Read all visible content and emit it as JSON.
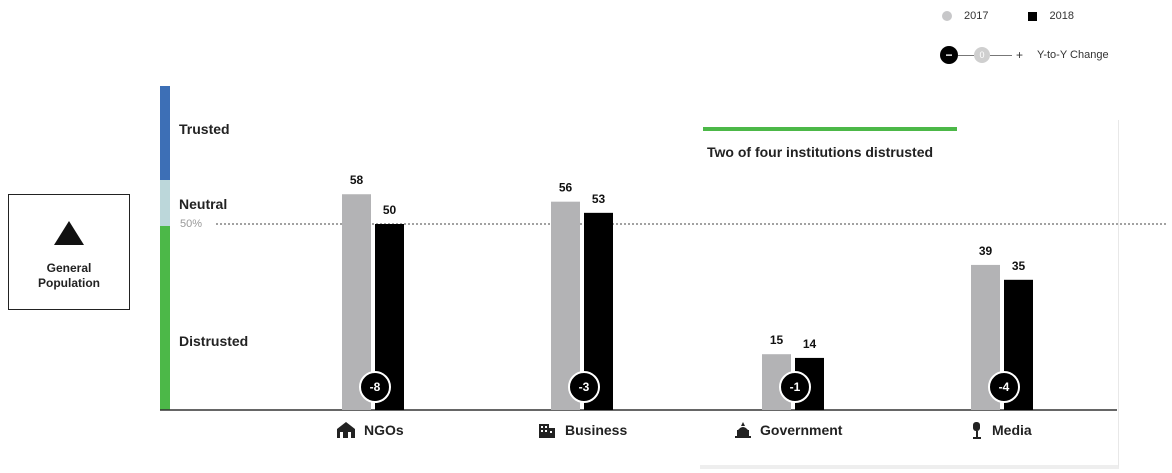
{
  "legend": {
    "y2017": "2017",
    "y2018": "2018",
    "change_minus": "−",
    "change_zero": "0",
    "change_plus": "+",
    "change_label": "Y-to-Y Change"
  },
  "population": {
    "label_line1": "General",
    "label_line2": "Population",
    "icon": "pyramid-icon"
  },
  "bands": {
    "trusted": "Trusted",
    "neutral": "Neutral",
    "distrusted": "Distrusted",
    "fifty": "50%"
  },
  "annotation": "Two of four institutions distrusted",
  "colors": {
    "y2017": "#b3b3b5",
    "y2018": "#000000",
    "trusted": "#3d6fb6",
    "neutral": "#bcd7da",
    "distrusted": "#4cb848",
    "annotation_line": "#4cb848"
  },
  "chart_data": {
    "type": "bar",
    "categories": [
      "NGOs",
      "Business",
      "Government",
      "Media"
    ],
    "category_icons": [
      "ngo-building-icon",
      "business-building-icon",
      "government-capitol-icon",
      "media-microphone-icon"
    ],
    "series": [
      {
        "name": "2017",
        "values": [
          58,
          56,
          15,
          39
        ]
      },
      {
        "name": "2018",
        "values": [
          50,
          53,
          14,
          35
        ]
      }
    ],
    "change": [
      -8,
      -3,
      -1,
      -4
    ],
    "reference_line": 50,
    "ylim": [
      0,
      100
    ],
    "legend_position": "top-right",
    "grid": false
  }
}
